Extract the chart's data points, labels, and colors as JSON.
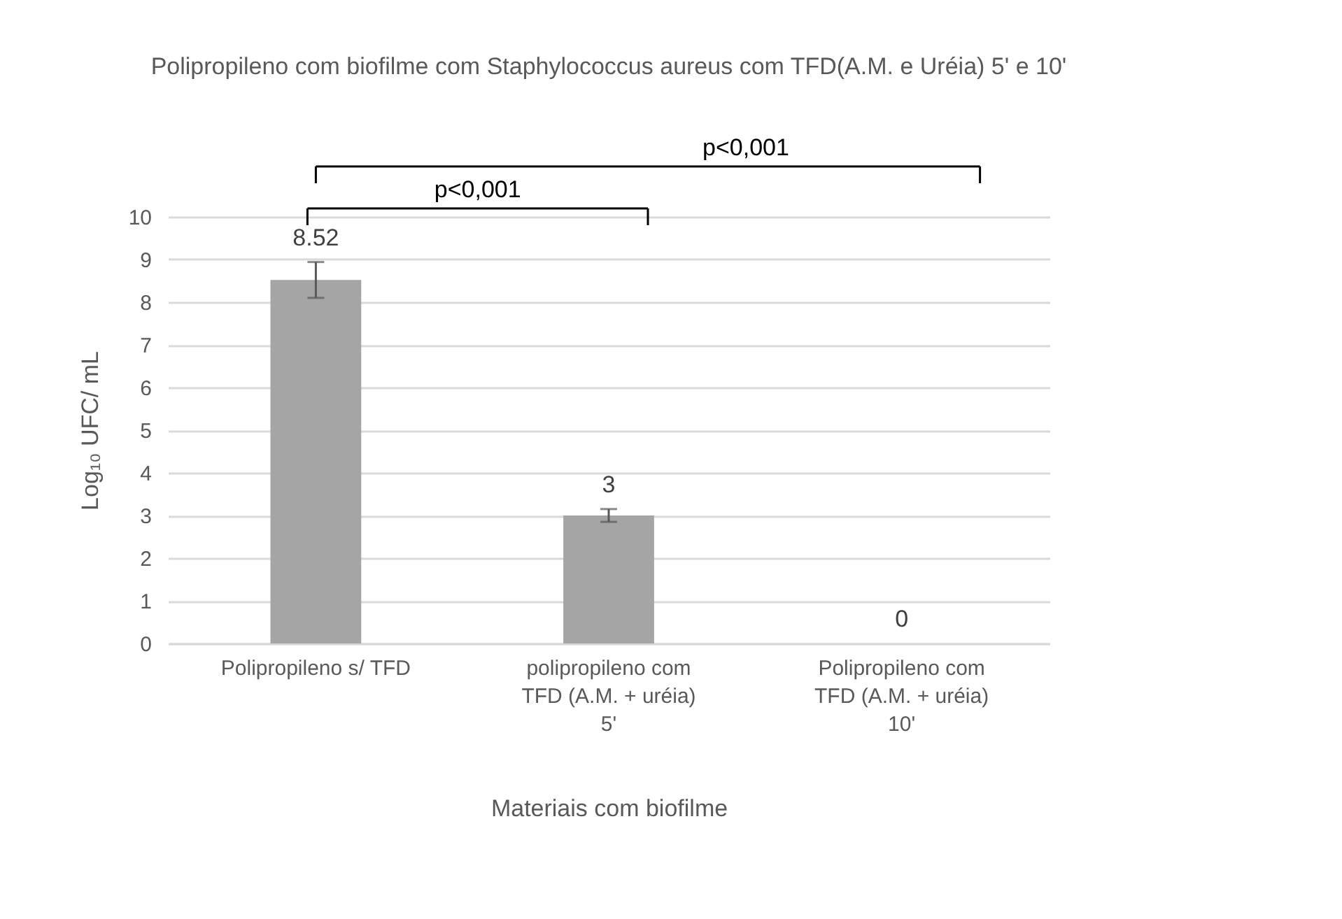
{
  "chart_data": {
    "type": "bar",
    "title": "Polipropileno com biofilme com Staphylococcus aureus com TFD(A.M. e Uréia) 5' e 10'",
    "xlabel": "Materiais com biofilme",
    "ylabel": "Log₁₀ UFC/ mL",
    "categories": [
      "Polipropileno s/ TFD",
      "polipropileno com TFD (A.M. + uréia) 5'",
      "Polipropileno com TFD (A.M. + uréia) 10'"
    ],
    "values": [
      8.52,
      3,
      0
    ],
    "errors": [
      0.42,
      0.15,
      null
    ],
    "color": "#a5a5a5",
    "ylim": [
      0,
      10
    ],
    "yticks": [
      0,
      1,
      2,
      3,
      4,
      5,
      6,
      7,
      8,
      9,
      10
    ],
    "grid": "y",
    "data_labels": true,
    "annotations": [
      "p<0,001",
      "p<0,001"
    ]
  }
}
